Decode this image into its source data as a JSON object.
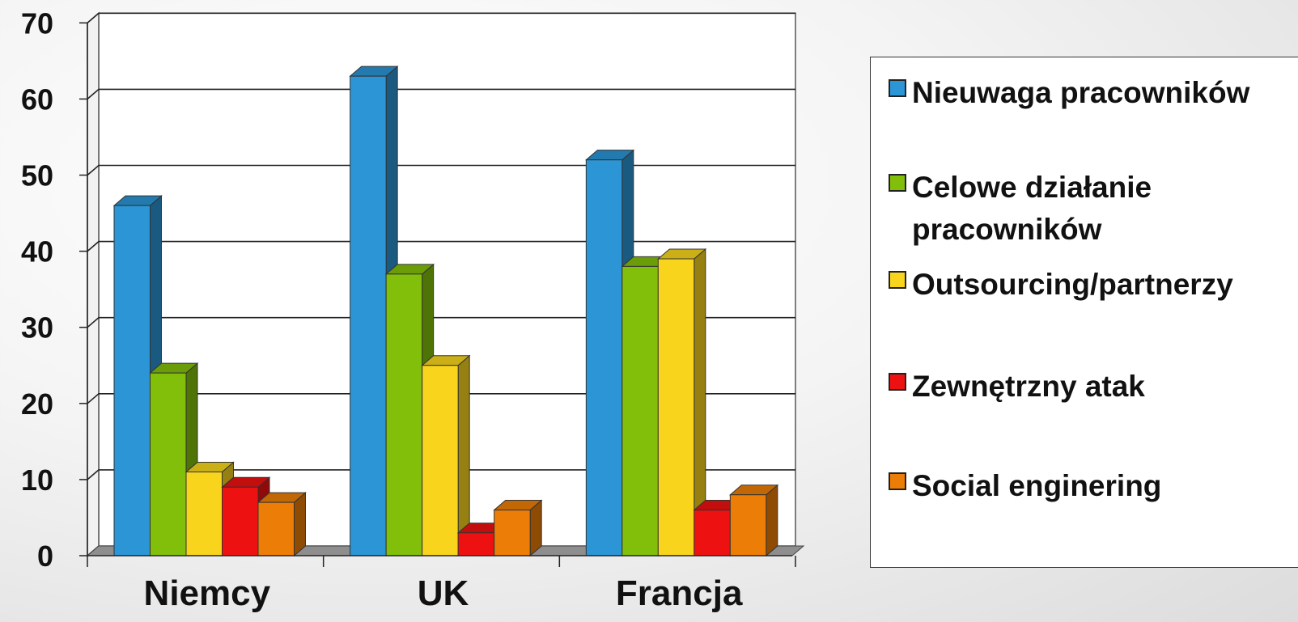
{
  "chart_data": {
    "type": "bar",
    "categories": [
      "Niemcy",
      "UK",
      "Francja"
    ],
    "series": [
      {
        "name": "Nieuwaga pracowników",
        "color": "#2b95d6",
        "values": [
          46,
          63,
          52
        ]
      },
      {
        "name": "Celowe działanie pracowników",
        "color": "#82bf0a",
        "values": [
          24,
          37,
          38
        ]
      },
      {
        "name": "Outsourcing/partnerzy",
        "color": "#f8d51c",
        "values": [
          11,
          25,
          39
        ]
      },
      {
        "name": "Zewnętrzny atak",
        "color": "#ee1111",
        "values": [
          9,
          3,
          6
        ]
      },
      {
        "name": "Social enginering",
        "color": "#ec7d06",
        "values": [
          7,
          6,
          8
        ]
      }
    ],
    "yticks": [
      "0",
      "10",
      "20",
      "30",
      "40",
      "50",
      "60",
      "70"
    ],
    "ylim": [
      0,
      70
    ],
    "grid": true,
    "legend_position": "right"
  }
}
